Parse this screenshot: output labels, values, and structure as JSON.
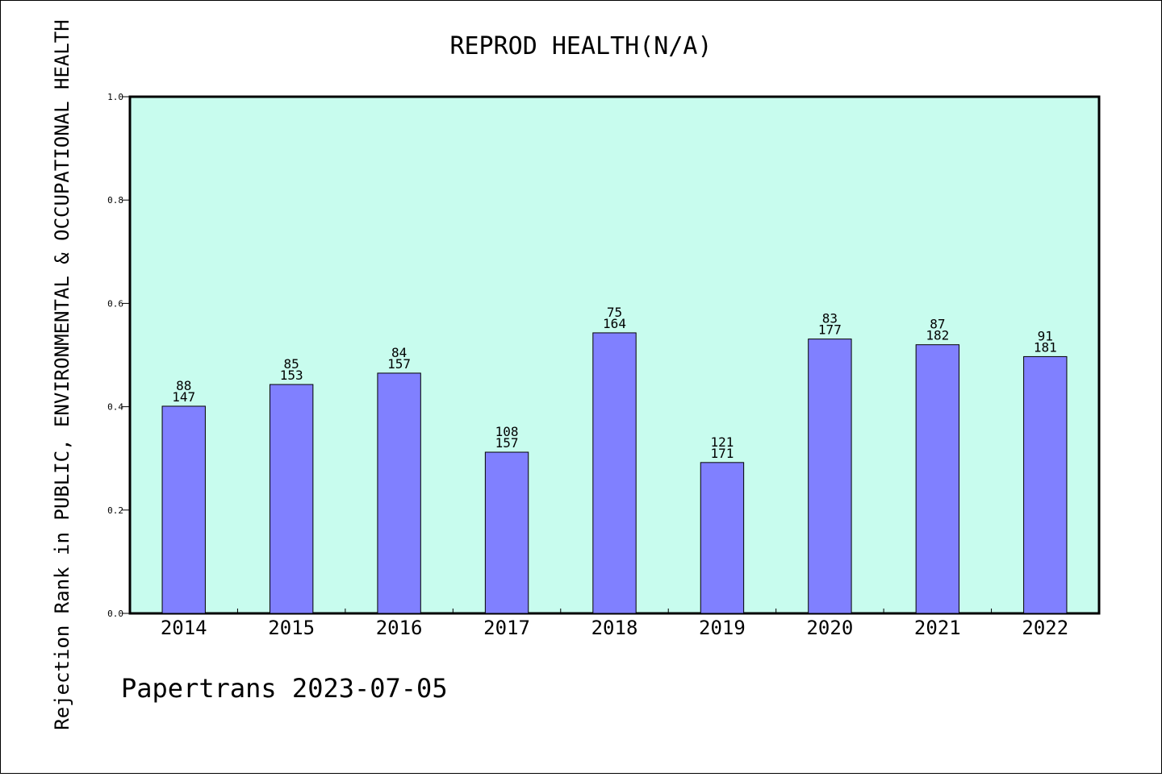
{
  "chart_data": {
    "type": "bar",
    "title": "REPROD HEALTH(N/A)",
    "xlabel": "",
    "ylabel": "Rejection Rank in PUBLIC, ENVIRONMENTAL & OCCUPATIONAL HEALTH",
    "categories": [
      "2014",
      "2015",
      "2016",
      "2017",
      "2018",
      "2019",
      "2020",
      "2021",
      "2022"
    ],
    "values": [
      0.401,
      0.443,
      0.465,
      0.312,
      0.543,
      0.292,
      0.531,
      0.52,
      0.497
    ],
    "label_top": [
      "88",
      "85",
      "84",
      "108",
      "75",
      "121",
      "83",
      "87",
      "91"
    ],
    "label_bottom": [
      "147",
      "153",
      "157",
      "157",
      "164",
      "171",
      "177",
      "182",
      "181"
    ],
    "ylim": [
      0,
      1.0
    ],
    "yticks": [
      "0.0",
      "0.2",
      "0.4",
      "0.6",
      "0.8",
      "1.0"
    ],
    "grid": false,
    "colors": {
      "plot_background": "#c8fcee",
      "bar_fill": "#8080ff",
      "bar_stroke": "#000000"
    }
  },
  "footer": "Papertrans 2023-07-05"
}
